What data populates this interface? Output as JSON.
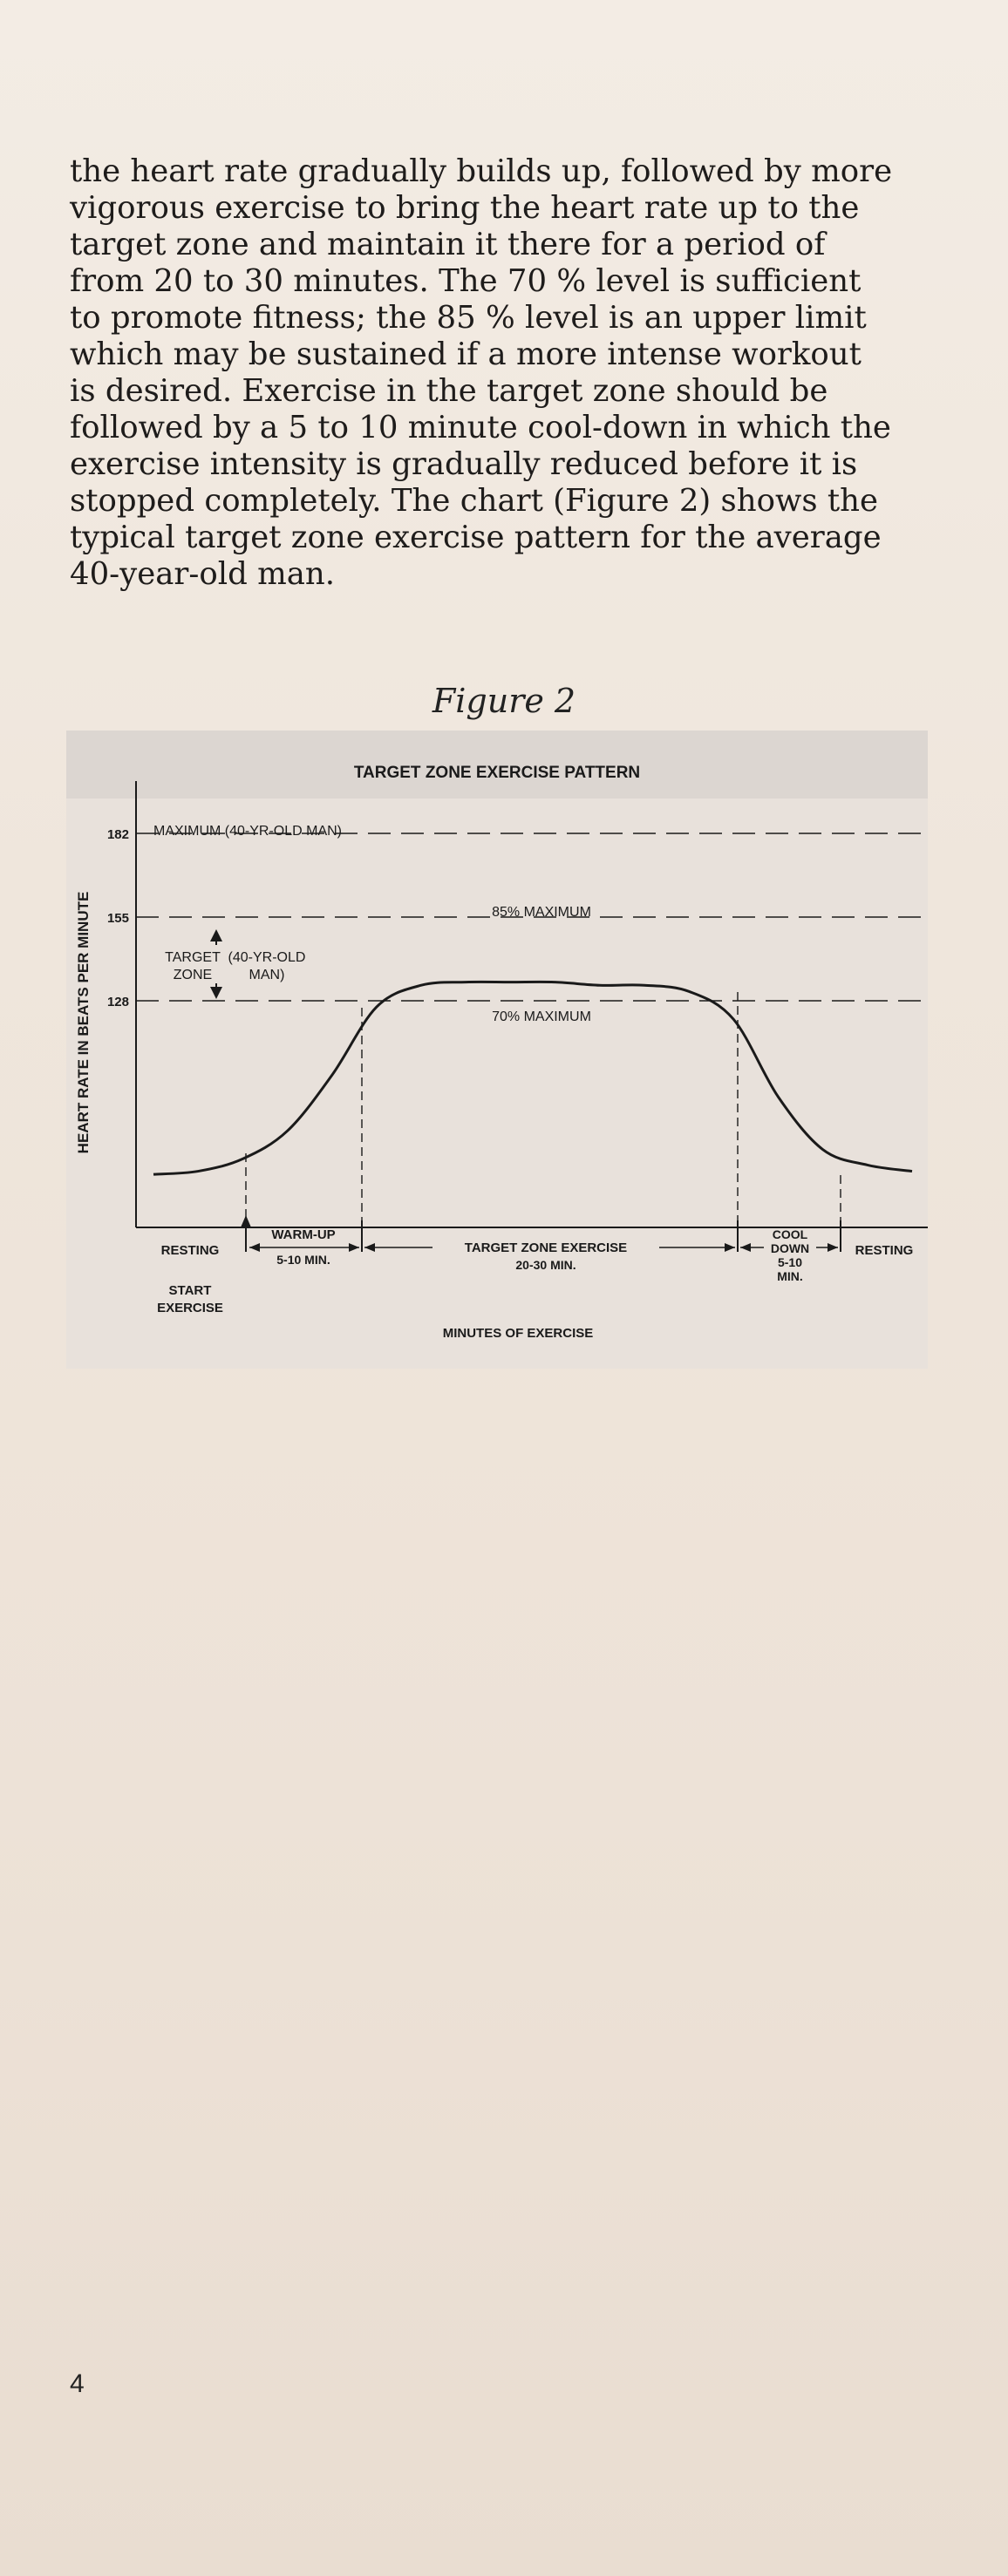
{
  "paragraph": {
    "lines": [
      "the heart rate gradually builds up, followed by more",
      "vigorous exercise to bring the heart rate up to the",
      "target zone and maintain it there for a period of",
      "from 20 to 30 minutes. The 70 % level is sufficient",
      "to promote fitness; the 85 % level is an upper limit",
      "which may be sustained if a more intense workout",
      "is desired. Exercise in the target zone should be",
      "followed by a 5 to 10 minute cool-down in which the",
      "exercise intensity is gradually reduced before it is",
      "stopped completely. The chart (Figure 2) shows the",
      "typical target zone exercise pattern for the average",
      "40-year-old man."
    ]
  },
  "figure": {
    "caption": "Figure 2"
  },
  "chart_data": {
    "type": "line",
    "title": "TARGET ZONE EXERCISE PATTERN",
    "ylabel": "HEART RATE IN BEATS PER MINUTE",
    "xlabel": "MINUTES OF EXERCISE",
    "y_ticks": [
      182,
      155,
      128
    ],
    "reference_lines": [
      {
        "value": 182,
        "label": "MAXIMUM (40-YR-OLD MAN)"
      },
      {
        "value": 155,
        "label": "85% MAXIMUM"
      },
      {
        "value": 128,
        "label": "70% MAXIMUM"
      }
    ],
    "target_zone_label": [
      "TARGET",
      "(40-YR-OLD",
      "ZONE",
      "MAN)"
    ],
    "phases": [
      {
        "name": "resting-start",
        "label": [
          "RESTING"
        ]
      },
      {
        "name": "warm-up",
        "label": [
          "WARM-UP",
          "5-10 MIN."
        ]
      },
      {
        "name": "target-zone-exercise",
        "label": [
          "TARGET ZONE EXERCISE",
          "20-30 MIN."
        ]
      },
      {
        "name": "cool-down",
        "label": [
          "COOL",
          "DOWN",
          "5-10",
          "MIN."
        ]
      },
      {
        "name": "resting-end",
        "label": [
          "RESTING"
        ]
      }
    ],
    "start_exercise_label": [
      "START",
      "EXERCISE"
    ],
    "curve": {
      "description_free": true,
      "points_index": [
        0,
        1,
        2,
        3,
        4,
        5,
        6,
        7,
        8,
        9,
        10,
        11,
        12,
        13,
        14,
        15,
        16,
        17
      ],
      "heart_rate": [
        72,
        73,
        77,
        86,
        104,
        126,
        133,
        134,
        134,
        134,
        133,
        133,
        131,
        122,
        97,
        80,
        75,
        73
      ]
    },
    "colors": {
      "plot_background": "#e7e0da",
      "line": "#1a1a1a"
    }
  },
  "page_number": "4"
}
